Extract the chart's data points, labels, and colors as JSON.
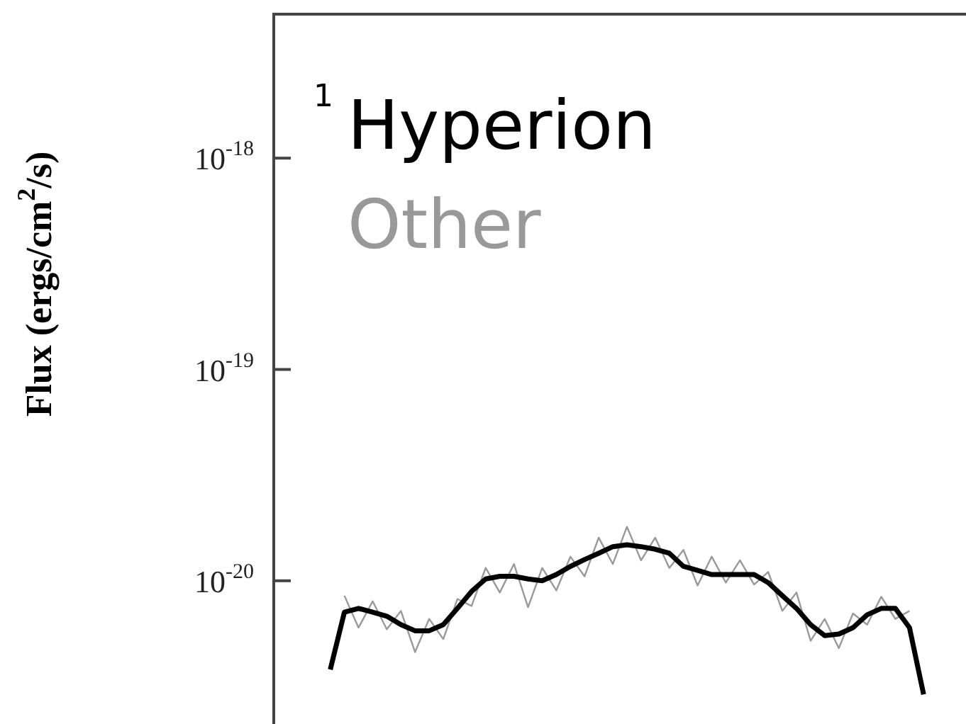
{
  "chart_data": {
    "type": "line",
    "ylabel": "Flux (ergs/cm$^{2}$/s)",
    "log": "y",
    "grid": false,
    "legend": "top left",
    "marker": "none",
    "line_style": "solid",
    "annotations": [
      "1"
    ],
    "categories": [
      null,
      null,
      null,
      null,
      null,
      null,
      null,
      null,
      null,
      null,
      null,
      null,
      null,
      null,
      null,
      null,
      null,
      null,
      null,
      null,
      null,
      null,
      null,
      null,
      null,
      null,
      null,
      null,
      null,
      null,
      null,
      null,
      null,
      null,
      null,
      null,
      null,
      null,
      null,
      null,
      null,
      null,
      null,
      null,
      null,
      null,
      null,
      null,
      null,
      null
    ],
    "ylim": [
      2.1e-21,
      4.8e-18
    ],
    "yticks": [
      {
        "value": 1e-20,
        "label": "10$^{-20}$"
      },
      {
        "value": 1e-19,
        "label": "10$^{-19}$"
      },
      {
        "value": 1e-18,
        "label": "10$^{-18}$"
      }
    ],
    "series": [
      {
        "name": "Hyperion",
        "color": "#000000",
        "values": [
          null,
          null,
          null,
          null,
          3.8e-21,
          7.1e-21,
          7.4e-21,
          7.1e-21,
          6.8e-21,
          6.2e-21,
          5.8e-21,
          5.8e-21,
          6.2e-21,
          7.4e-21,
          8.9e-21,
          1.02e-20,
          1.05e-20,
          1.05e-20,
          1.02e-20,
          1e-20,
          1.07e-20,
          1.17e-20,
          1.26e-20,
          1.35e-20,
          1.45e-20,
          1.48e-20,
          1.45e-20,
          1.41e-20,
          1.35e-20,
          1.17e-20,
          1.12e-20,
          1.07e-20,
          1.07e-20,
          1.07e-20,
          1.07e-20,
          9.8e-21,
          8.5e-21,
          7.4e-21,
          6.2e-21,
          5.5e-21,
          5.6e-21,
          6e-21,
          6.9e-21,
          7.4e-21,
          7.4e-21,
          6e-21,
          2.9e-21,
          null,
          null,
          null
        ]
      },
      {
        "name": "Other",
        "color": "#999999",
        "values": [
          null,
          null,
          null,
          null,
          null,
          8.5e-21,
          6e-21,
          8e-21,
          5.9e-21,
          7.2e-21,
          4.6e-21,
          6.6e-21,
          5.3e-21,
          8.2e-21,
          7.6e-21,
          1.15e-20,
          8.8e-21,
          1.2e-20,
          7.5e-21,
          1.15e-20,
          9e-21,
          1.3e-20,
          1.05e-20,
          1.6e-20,
          1.2e-20,
          1.8e-20,
          1.25e-20,
          1.6e-20,
          1.15e-20,
          1.4e-20,
          9.5e-21,
          1.3e-20,
          9.8e-21,
          1.25e-20,
          9.6e-21,
          1.1e-20,
          7.2e-21,
          8.8e-21,
          5.2e-21,
          6.6e-21,
          4.8e-21,
          7e-21,
          6.2e-21,
          8.4e-21,
          6.6e-21,
          7.2e-21,
          null,
          null,
          null,
          null
        ]
      }
    ]
  }
}
